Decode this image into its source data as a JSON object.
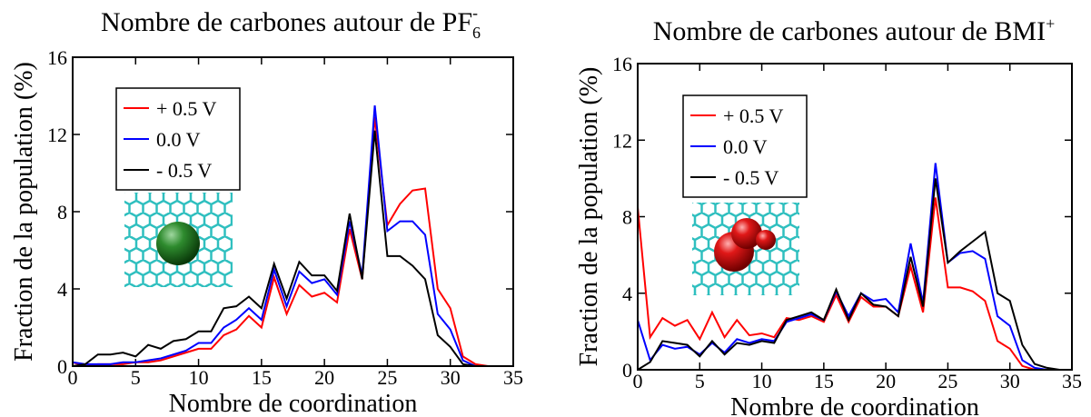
{
  "chart_data": [
    {
      "type": "line",
      "title": "Nombre de carbones autour de PF",
      "title_sub": "6",
      "title_sup": "-",
      "x_label": "Nombre de coordination",
      "y_label": "Fraction de la population (%)",
      "xlim": [
        0,
        35
      ],
      "ylim": [
        0,
        16
      ],
      "xticks": [
        0,
        5,
        10,
        15,
        20,
        25,
        30,
        35
      ],
      "yticks": [
        0,
        4,
        8,
        12,
        16
      ],
      "legend": "upper left",
      "x": [
        0,
        1,
        2,
        3,
        4,
        5,
        6,
        7,
        8,
        9,
        10,
        11,
        12,
        13,
        14,
        15,
        16,
        17,
        18,
        19,
        20,
        21,
        22,
        23,
        24,
        25,
        26,
        27,
        28,
        29,
        30,
        31,
        32,
        33,
        34,
        35
      ],
      "series": [
        {
          "name": "+ 0.5 V",
          "color": "#ff0000",
          "values": [
            0.2,
            0,
            0.1,
            0.1,
            0.1,
            0.2,
            0.2,
            0.3,
            0.5,
            0.7,
            0.9,
            0.9,
            1.6,
            1.9,
            2.6,
            2.0,
            4.6,
            2.7,
            4.2,
            3.6,
            3.8,
            3.3,
            7.1,
            4.5,
            12.9,
            7.3,
            8.4,
            9.1,
            9.2,
            4.0,
            3.0,
            0.5,
            0.1,
            0,
            0,
            0
          ]
        },
        {
          "name": "0.0 V",
          "color": "#0000ff",
          "values": [
            0.2,
            0.1,
            0.1,
            0.1,
            0.2,
            0.2,
            0.3,
            0.4,
            0.6,
            0.8,
            1.2,
            1.2,
            2.0,
            2.4,
            3.0,
            2.4,
            5.0,
            3.1,
            4.9,
            4.3,
            4.5,
            3.7,
            7.5,
            4.7,
            13.5,
            7.0,
            7.5,
            7.5,
            6.8,
            2.7,
            1.9,
            0.3,
            0,
            0,
            0,
            0
          ]
        },
        {
          "name": "- 0.5 V",
          "color": "#000000",
          "values": [
            0,
            0.1,
            0.6,
            0.6,
            0.7,
            0.5,
            1.1,
            0.9,
            1.3,
            1.4,
            1.8,
            1.8,
            3.0,
            3.1,
            3.6,
            3.0,
            5.3,
            3.5,
            5.4,
            4.7,
            4.7,
            3.9,
            7.9,
            4.5,
            12.2,
            5.7,
            5.7,
            5.2,
            4.5,
            1.6,
            1.0,
            0.1,
            0,
            0,
            0,
            0
          ]
        }
      ]
    },
    {
      "type": "line",
      "title": "Nombre de carbones autour de BMI",
      "title_sup": "+",
      "x_label": "Nombre de coordination",
      "y_label": "Fraction de la population (%)",
      "xlim": [
        0,
        35
      ],
      "ylim": [
        0,
        16
      ],
      "xticks": [
        0,
        5,
        10,
        15,
        20,
        25,
        30,
        35
      ],
      "yticks": [
        0,
        4,
        8,
        12,
        16
      ],
      "legend": "upper left",
      "x": [
        0,
        1,
        2,
        3,
        4,
        5,
        6,
        7,
        8,
        9,
        10,
        11,
        12,
        13,
        14,
        15,
        16,
        17,
        18,
        19,
        20,
        21,
        22,
        23,
        24,
        25,
        26,
        27,
        28,
        29,
        30,
        31,
        32,
        33,
        34,
        35
      ],
      "series": [
        {
          "name": "+ 0.5 V",
          "color": "#ff0000",
          "values": [
            8.5,
            1.7,
            2.7,
            2.3,
            2.6,
            1.6,
            3.0,
            1.7,
            2.6,
            1.8,
            1.9,
            1.7,
            2.7,
            2.6,
            2.8,
            2.5,
            3.9,
            2.5,
            3.8,
            3.3,
            3.3,
            2.8,
            5.4,
            3.0,
            9.0,
            4.3,
            4.3,
            4.1,
            3.6,
            1.5,
            1.1,
            0.2,
            0,
            0,
            0,
            0
          ]
        },
        {
          "name": "0.0 V",
          "color": "#0000ff",
          "values": [
            2.6,
            0.5,
            1.3,
            1.1,
            1.2,
            0.8,
            1.4,
            0.9,
            1.6,
            1.4,
            1.6,
            1.5,
            2.5,
            2.7,
            2.9,
            2.6,
            4.1,
            2.8,
            4.0,
            3.6,
            3.7,
            3.0,
            6.6,
            3.5,
            10.8,
            5.6,
            6.1,
            6.2,
            5.8,
            2.8,
            2.3,
            0.5,
            0.1,
            0,
            0,
            0
          ]
        },
        {
          "name": "- 0.5 V",
          "color": "#000000",
          "values": [
            0,
            0.4,
            1.5,
            1.4,
            1.3,
            0.7,
            1.5,
            0.8,
            1.4,
            1.3,
            1.5,
            1.4,
            2.6,
            2.8,
            3.0,
            2.6,
            4.2,
            2.6,
            4.0,
            3.4,
            3.3,
            2.8,
            5.9,
            3.3,
            10.0,
            5.6,
            6.2,
            6.7,
            7.2,
            4.0,
            3.6,
            1.3,
            0.3,
            0.1,
            0,
            0
          ]
        }
      ]
    }
  ]
}
